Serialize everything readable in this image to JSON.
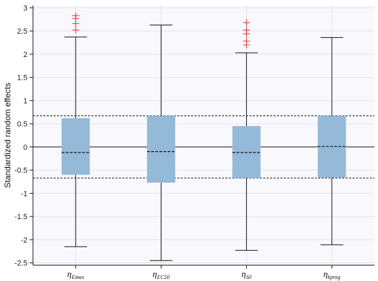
{
  "chart_data": {
    "type": "box",
    "ylabel": "Standardized random effects",
    "ylim": [
      -2.55,
      3.05
    ],
    "yticks": [
      -2.5,
      -2,
      -1.5,
      -1,
      -0.5,
      0,
      0.5,
      1,
      1.5,
      2,
      2.5,
      3
    ],
    "ytick_labels": [
      "-2.5",
      "-2",
      "-1.5",
      "-1",
      "-0.5",
      "0",
      "0.5",
      "1",
      "1.5",
      "2",
      "2.5",
      "3"
    ],
    "grid": true,
    "reference_lines": [
      {
        "y": 0,
        "style": "solid"
      },
      {
        "y": 0.67,
        "style": "dashed"
      },
      {
        "y": -0.67,
        "style": "dashed"
      }
    ],
    "categories": [
      {
        "symbol": "η",
        "sub": "Emax"
      },
      {
        "symbol": "η",
        "sub": "EC50"
      },
      {
        "symbol": "η",
        "sub": "S0"
      },
      {
        "symbol": "η",
        "sub": "kprog"
      }
    ],
    "boxes": [
      {
        "whisker_low": -2.15,
        "q1": -0.6,
        "median": -0.12,
        "q3": 0.62,
        "whisker_high": 2.37,
        "outliers": [
          2.52,
          2.66,
          2.77,
          2.83
        ]
      },
      {
        "whisker_low": -2.45,
        "q1": -0.77,
        "median": -0.1,
        "q3": 0.67,
        "whisker_high": 2.63,
        "outliers": []
      },
      {
        "whisker_low": -2.23,
        "q1": -0.67,
        "median": -0.12,
        "q3": 0.45,
        "whisker_high": 2.03,
        "outliers": [
          2.2,
          2.28,
          2.44,
          2.52,
          2.68
        ]
      },
      {
        "whisker_low": -2.11,
        "q1": -0.66,
        "median": 0.01,
        "q3": 0.67,
        "whisker_high": 2.36,
        "outliers": []
      }
    ],
    "colors": {
      "box_fill": "#94b9d9",
      "whisker": "#111111",
      "outlier": "#e0403a",
      "grid": "#e1e1ef",
      "plot_bg": "#f9f9fd"
    }
  }
}
